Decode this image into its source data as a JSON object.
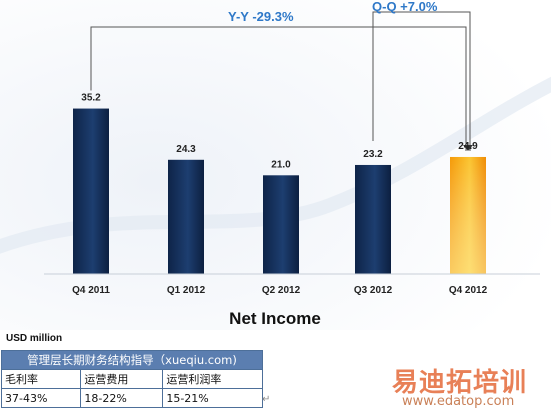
{
  "chart_data": {
    "type": "bar",
    "title": "Net Income",
    "categories": [
      "Q4 2011",
      "Q1 2012",
      "Q2 2012",
      "Q3 2012",
      "Q4 2012"
    ],
    "values": [
      35.2,
      24.3,
      21.0,
      23.2,
      24.9
    ],
    "value_labels": [
      "35.2",
      "24.3",
      "21.0",
      "23.2",
      "24.9"
    ],
    "highlight_category": "Q4 2012",
    "colors": {
      "bar": "#14305c",
      "bar_highlight": "#f6a40d",
      "annotation": "#2e78c8"
    },
    "annotations": [
      {
        "label": "Y-Y   -29.3%",
        "from": "Q4 2011",
        "to": "Q4 2012"
      },
      {
        "label": "Q-Q   +7.0%",
        "from": "Q3 2012",
        "to": "Q4 2012"
      }
    ],
    "unit_label": "USD million",
    "ylim": [
      0,
      40
    ],
    "grid": false,
    "legend": "none"
  },
  "table": {
    "title": "管理层长期财务结构指导（xueqiu.com)",
    "headers": [
      "毛利率",
      "运营费用",
      "运营利润率"
    ],
    "values": [
      "37-43%",
      "18-22%",
      "15-21%"
    ]
  },
  "watermark": {
    "logo": "易迪拓培训",
    "url": "www.edatop.com"
  }
}
